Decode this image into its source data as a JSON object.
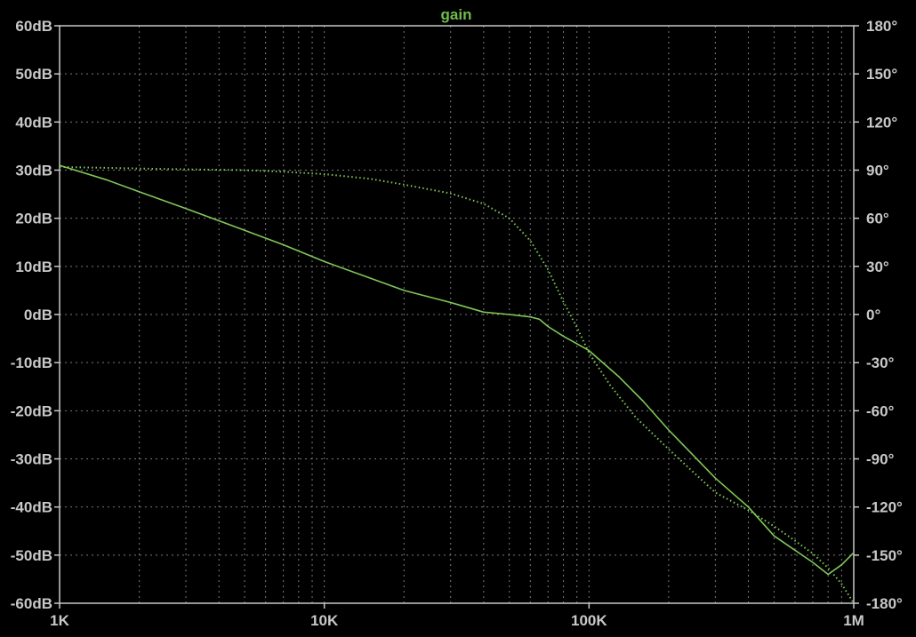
{
  "chart_data": {
    "type": "line",
    "title": "gain",
    "xscale": "log",
    "xlim": [
      1000,
      1000000
    ],
    "x_ticks": [
      {
        "value": 1000,
        "label": "1K"
      },
      {
        "value": 10000,
        "label": "10K"
      },
      {
        "value": 100000,
        "label": "100K"
      },
      {
        "value": 1000000,
        "label": "1M"
      }
    ],
    "y_left": {
      "lim": [
        -60,
        60
      ],
      "ticks": [
        {
          "value": 60,
          "label": "60dB"
        },
        {
          "value": 50,
          "label": "50dB"
        },
        {
          "value": 40,
          "label": "40dB"
        },
        {
          "value": 30,
          "label": "30dB"
        },
        {
          "value": 20,
          "label": "20dB"
        },
        {
          "value": 10,
          "label": "10dB"
        },
        {
          "value": 0,
          "label": "0dB"
        },
        {
          "value": -10,
          "label": "-10dB"
        },
        {
          "value": -20,
          "label": "-20dB"
        },
        {
          "value": -30,
          "label": "-30dB"
        },
        {
          "value": -40,
          "label": "-40dB"
        },
        {
          "value": -50,
          "label": "-50dB"
        },
        {
          "value": -60,
          "label": "-60dB"
        }
      ]
    },
    "y_right": {
      "lim": [
        -180,
        180
      ],
      "ticks": [
        {
          "value": 180,
          "label": "180°"
        },
        {
          "value": 150,
          "label": "150°"
        },
        {
          "value": 120,
          "label": "120°"
        },
        {
          "value": 90,
          "label": "90°"
        },
        {
          "value": 60,
          "label": "60°"
        },
        {
          "value": 30,
          "label": "30°"
        },
        {
          "value": 0,
          "label": "0°"
        },
        {
          "value": -30,
          "label": "-30°"
        },
        {
          "value": -60,
          "label": "-60°"
        },
        {
          "value": -90,
          "label": "-90°"
        },
        {
          "value": -120,
          "label": "-120°"
        },
        {
          "value": -150,
          "label": "-150°"
        },
        {
          "value": -180,
          "label": "-180°"
        }
      ]
    },
    "grid": true,
    "colors": {
      "background": "#000000",
      "frame": "#c8c8c8",
      "grid": "#7a7a7a",
      "trace": "#7fc75a",
      "title": "#6ebe4a",
      "tick_text": "#c8c8c8"
    },
    "series": [
      {
        "axis": "left",
        "style": "solid",
        "points": [
          [
            1000,
            31
          ],
          [
            1500,
            28
          ],
          [
            2000,
            25.5
          ],
          [
            3000,
            22
          ],
          [
            5000,
            17.5
          ],
          [
            7000,
            14.5
          ],
          [
            10000,
            11
          ],
          [
            15000,
            7.5
          ],
          [
            20000,
            5
          ],
          [
            30000,
            2.5
          ],
          [
            40000,
            0.5
          ],
          [
            50000,
            0
          ],
          [
            60000,
            -0.5
          ],
          [
            65000,
            -1
          ],
          [
            70000,
            -2.5
          ],
          [
            80000,
            -4.5
          ],
          [
            100000,
            -7.5
          ],
          [
            130000,
            -13
          ],
          [
            160000,
            -18
          ],
          [
            200000,
            -24
          ],
          [
            250000,
            -29.5
          ],
          [
            300000,
            -34
          ],
          [
            400000,
            -40
          ],
          [
            500000,
            -46
          ],
          [
            600000,
            -49
          ],
          [
            700000,
            -51.5
          ],
          [
            800000,
            -54
          ],
          [
            900000,
            -52
          ],
          [
            1000000,
            -49.5
          ]
        ]
      },
      {
        "axis": "right",
        "style": "dotted",
        "points": [
          [
            1000,
            92
          ],
          [
            2000,
            91
          ],
          [
            3000,
            90.5
          ],
          [
            5000,
            90
          ],
          [
            7000,
            89
          ],
          [
            10000,
            87.5
          ],
          [
            15000,
            84.5
          ],
          [
            20000,
            81
          ],
          [
            30000,
            75.5
          ],
          [
            40000,
            69
          ],
          [
            50000,
            60
          ],
          [
            60000,
            46
          ],
          [
            70000,
            28
          ],
          [
            80000,
            8
          ],
          [
            90000,
            -8
          ],
          [
            100000,
            -24
          ],
          [
            120000,
            -44
          ],
          [
            150000,
            -64
          ],
          [
            200000,
            -84
          ],
          [
            300000,
            -111
          ],
          [
            400000,
            -122
          ],
          [
            500000,
            -132
          ],
          [
            600000,
            -141
          ],
          [
            700000,
            -149
          ],
          [
            800000,
            -158
          ],
          [
            900000,
            -168
          ],
          [
            1000000,
            -180
          ]
        ]
      }
    ]
  }
}
